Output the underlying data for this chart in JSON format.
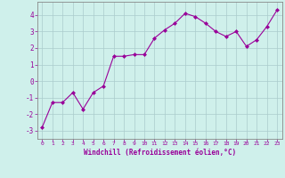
{
  "x": [
    0,
    1,
    2,
    3,
    4,
    5,
    6,
    7,
    8,
    9,
    10,
    11,
    12,
    13,
    14,
    15,
    16,
    17,
    18,
    19,
    20,
    21,
    22,
    23
  ],
  "y": [
    -2.8,
    -1.3,
    -1.3,
    -0.7,
    -1.7,
    -0.7,
    -0.3,
    1.5,
    1.5,
    1.6,
    1.6,
    2.6,
    3.1,
    3.5,
    4.1,
    3.9,
    3.5,
    3.0,
    2.7,
    3.0,
    2.1,
    2.5,
    3.3,
    4.3
  ],
  "line_color": "#990099",
  "marker": "D",
  "marker_size": 2,
  "background_color": "#cff0eb",
  "grid_color": "#aacccc",
  "xlabel": "Windchill (Refroidissement éolien,°C)",
  "xlabel_color": "#990099",
  "tick_color": "#990099",
  "ylim": [
    -3.5,
    4.8
  ],
  "xlim": [
    -0.5,
    23.5
  ],
  "yticks": [
    -3,
    -2,
    -1,
    0,
    1,
    2,
    3,
    4
  ],
  "xticks": [
    0,
    1,
    2,
    3,
    4,
    5,
    6,
    7,
    8,
    9,
    10,
    11,
    12,
    13,
    14,
    15,
    16,
    17,
    18,
    19,
    20,
    21,
    22,
    23
  ],
  "spine_color": "#888888"
}
